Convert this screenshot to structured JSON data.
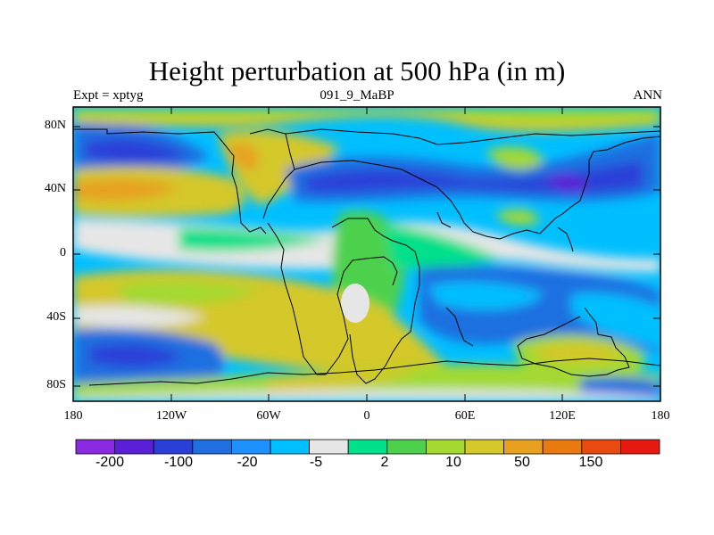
{
  "title": "Height perturbation at 500 hPa (in m)",
  "subtitle": {
    "left": "Expt = xptyg",
    "center": "091_9_MaBP",
    "right": "ANN"
  },
  "map": {
    "type": "filled-contour-map",
    "projection": "cylindrical equidistant",
    "variable": "500 hPa geopotential height perturbation",
    "units": "m",
    "y_tick_labels": [
      "80N",
      "40N",
      "0",
      "40S",
      "80S"
    ],
    "x_tick_labels": [
      "180",
      "120W",
      "60W",
      "0",
      "60E",
      "120E",
      "180"
    ],
    "lat_range": [
      -90,
      90
    ],
    "lon_range": [
      -180,
      180
    ]
  },
  "colorbar": {
    "orientation": "horizontal",
    "labels": [
      "-200",
      "-100",
      "-20",
      "-5",
      "2",
      "10",
      "50",
      "150"
    ],
    "colors": [
      "#8a2be2",
      "#5a1fd6",
      "#2a3fd8",
      "#1f6fe0",
      "#1e90ff",
      "#00bfff",
      "#e6e6e6",
      "#00e08a",
      "#4dd14d",
      "#a3d930",
      "#d4c82a",
      "#e8a020",
      "#e87a10",
      "#e84a10",
      "#e61a10"
    ]
  }
}
